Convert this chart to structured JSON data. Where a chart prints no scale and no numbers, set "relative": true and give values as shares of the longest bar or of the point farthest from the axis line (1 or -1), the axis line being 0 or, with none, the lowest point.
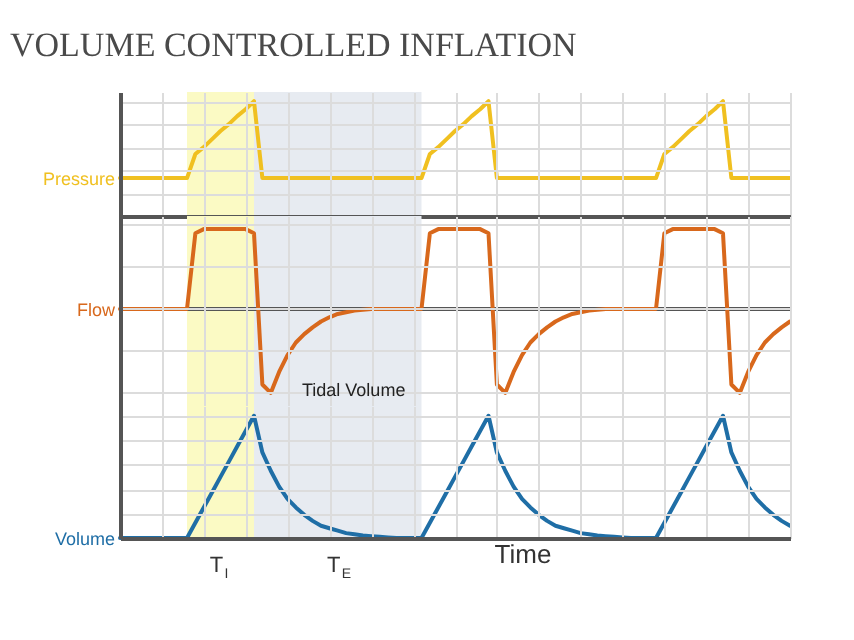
{
  "chart_data": [
    {
      "type": "line",
      "title": "VOLUME CONTROLLED INFLATION",
      "ylabel": "Pressure",
      "relative": true,
      "grid": true,
      "categories": [
        null,
        null,
        null,
        null,
        null,
        null,
        null,
        null,
        null,
        null,
        null,
        null,
        null,
        null,
        null,
        null,
        null,
        null,
        null,
        null,
        null,
        null,
        null,
        null,
        null,
        null,
        null,
        null,
        null,
        null,
        null,
        null,
        null,
        null,
        null,
        null,
        null,
        null,
        null,
        null,
        null,
        null,
        null,
        null,
        null,
        null,
        null,
        null,
        null,
        null,
        null,
        null,
        null,
        null,
        null,
        null,
        null,
        null,
        null,
        null,
        null,
        null,
        null,
        null,
        null,
        null,
        null,
        null,
        null,
        null,
        null,
        null,
        null,
        null,
        null,
        null,
        null,
        null,
        null,
        null,
        null
      ],
      "series": [
        {
          "color": "#f0c020",
          "values": [
            0.33,
            0.33,
            0.33,
            0.33,
            0.33,
            0.33,
            0.33,
            0.33,
            0.33,
            0.54,
            0.6,
            0.67,
            0.74,
            0.8,
            0.87,
            0.93,
            1,
            0.33,
            0.33,
            0.33,
            0.33,
            0.33,
            0.33,
            0.33,
            0.33,
            0.33,
            0.33,
            0.33,
            0.33,
            0.33,
            0.33,
            0.33,
            0.33,
            0.33,
            0.33,
            0.33,
            0.33,
            0.54,
            0.6,
            0.67,
            0.74,
            0.8,
            0.87,
            0.93,
            1,
            0.33,
            0.33,
            0.33,
            0.33,
            0.33,
            0.33,
            0.33,
            0.33,
            0.33,
            0.33,
            0.33,
            0.33,
            0.33,
            0.33,
            0.33,
            0.33,
            0.33,
            0.33,
            0.33,
            0.33,
            0.54,
            0.6,
            0.67,
            0.74,
            0.8,
            0.87,
            0.93,
            1,
            0.33,
            0.33,
            0.33,
            0.33,
            0.33,
            0.33,
            0.33,
            0.33
          ]
        }
      ]
    },
    {
      "type": "line",
      "ylabel": "Flow",
      "relative": true,
      "grid": true,
      "categories": [
        null,
        null,
        null,
        null,
        null,
        null,
        null,
        null,
        null,
        null,
        null,
        null,
        null,
        null,
        null,
        null,
        null,
        null,
        null,
        null,
        null,
        null,
        null,
        null,
        null,
        null,
        null,
        null,
        null,
        null,
        null,
        null,
        null,
        null,
        null,
        null,
        null,
        null,
        null,
        null,
        null,
        null,
        null,
        null,
        null,
        null,
        null,
        null,
        null,
        null,
        null,
        null,
        null,
        null,
        null,
        null,
        null,
        null,
        null,
        null,
        null,
        null,
        null,
        null,
        null,
        null,
        null,
        null,
        null,
        null,
        null,
        null,
        null,
        null,
        null,
        null,
        null,
        null,
        null,
        null,
        null
      ],
      "series": [
        {
          "color": "#d8681c",
          "values": [
            0,
            0,
            0,
            0,
            0,
            0,
            0,
            0,
            0,
            0.9,
            0.95,
            0.95,
            0.95,
            0.95,
            0.95,
            0.95,
            0.9,
            -0.9,
            -1,
            -0.75,
            -0.55,
            -0.4,
            -0.3,
            -0.22,
            -0.15,
            -0.1,
            -0.06,
            -0.04,
            -0.02,
            -0.01,
            0,
            0,
            0,
            0,
            0,
            0,
            0,
            0.9,
            0.95,
            0.95,
            0.95,
            0.95,
            0.95,
            0.95,
            0.9,
            -0.9,
            -1,
            -0.75,
            -0.55,
            -0.4,
            -0.3,
            -0.22,
            -0.15,
            -0.1,
            -0.06,
            -0.04,
            -0.02,
            -0.01,
            0,
            0,
            0,
            0,
            0,
            0,
            0,
            0.9,
            0.95,
            0.95,
            0.95,
            0.95,
            0.95,
            0.95,
            0.9,
            -0.9,
            -1,
            -0.75,
            -0.55,
            -0.4,
            -0.3,
            -0.22,
            -0.15
          ]
        }
      ]
    },
    {
      "type": "line",
      "ylabel": "Volume",
      "xlabel": "Time",
      "relative": true,
      "grid": true,
      "categories": [
        null,
        null,
        null,
        null,
        null,
        null,
        null,
        null,
        null,
        null,
        null,
        null,
        null,
        null,
        null,
        null,
        null,
        null,
        null,
        null,
        null,
        null,
        null,
        null,
        null,
        null,
        null,
        null,
        null,
        null,
        null,
        null,
        null,
        null,
        null,
        null,
        null,
        null,
        null,
        null,
        null,
        null,
        null,
        null,
        null,
        null,
        null,
        null,
        null,
        null,
        null,
        null,
        null,
        null,
        null,
        null,
        null,
        null,
        null,
        null,
        null,
        null,
        null,
        null,
        null,
        null,
        null,
        null,
        null,
        null,
        null,
        null,
        null,
        null,
        null,
        null,
        null,
        null,
        null,
        null,
        null
      ],
      "annotations": [
        "Tidal Volume",
        "T$_{I}$",
        "T$_{E}$"
      ],
      "series": [
        {
          "color": "#1f6ea6",
          "values": [
            0,
            0,
            0,
            0,
            0,
            0,
            0,
            0,
            0,
            0.125,
            0.25,
            0.375,
            0.5,
            0.625,
            0.75,
            0.875,
            1,
            0.7,
            0.55,
            0.42,
            0.32,
            0.25,
            0.19,
            0.14,
            0.1,
            0.08,
            0.06,
            0.04,
            0.03,
            0.02,
            0.015,
            0.01,
            0.005,
            0,
            0,
            0,
            0,
            0.125,
            0.25,
            0.375,
            0.5,
            0.625,
            0.75,
            0.875,
            1,
            0.7,
            0.55,
            0.42,
            0.32,
            0.25,
            0.19,
            0.14,
            0.1,
            0.08,
            0.06,
            0.04,
            0.03,
            0.02,
            0.015,
            0.01,
            0.005,
            0,
            0,
            0,
            0,
            0.125,
            0.25,
            0.375,
            0.5,
            0.625,
            0.75,
            0.875,
            1,
            0.7,
            0.55,
            0.42,
            0.32,
            0.25,
            0.19,
            0.14,
            0.1
          ]
        }
      ]
    }
  ]
}
